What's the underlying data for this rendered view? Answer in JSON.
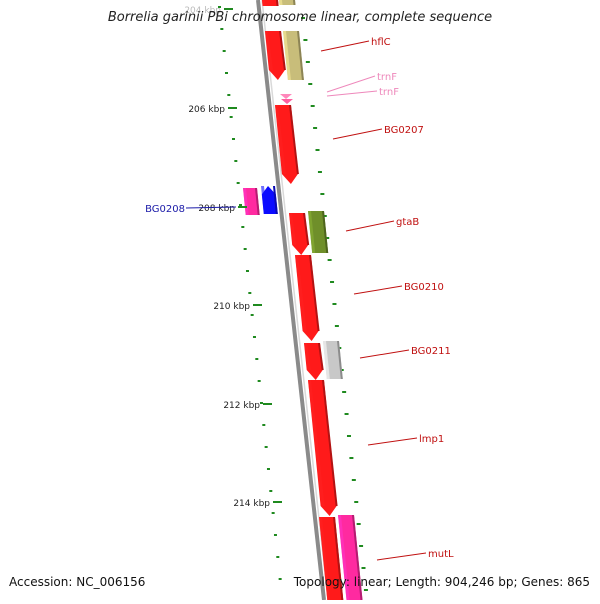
{
  "title": "Borrelia garinii PBi chromosome linear, complete sequence",
  "footer": {
    "accession": "Accession: NC_006156",
    "summary": "Topology: linear; Length: 904,246 bp; Genes: 865"
  },
  "kbp_ticks": [
    {
      "kbp": 204,
      "label": "204 kbp",
      "faded": true
    },
    {
      "kbp": 206,
      "label": "206 kbp"
    },
    {
      "kbp": 208,
      "label": "208 kbp"
    },
    {
      "kbp": 210,
      "label": "210 kbp"
    },
    {
      "kbp": 212,
      "label": "212 kbp"
    },
    {
      "kbp": 214,
      "label": "214 kbp"
    }
  ],
  "genes": [
    {
      "name": "hflC",
      "color": "#c01010"
    },
    {
      "name": "trnF",
      "color": "#ee88bb"
    },
    {
      "name": "trnF",
      "color": "#ee88bb"
    },
    {
      "name": "BG0207",
      "color": "#c01010"
    },
    {
      "name": "BG0208",
      "color": "#1a1aa8"
    },
    {
      "name": "gtaB",
      "color": "#c01010"
    },
    {
      "name": "BG0210",
      "color": "#c01010"
    },
    {
      "name": "BG0211",
      "color": "#c01010"
    },
    {
      "name": "lmp1",
      "color": "#c01010"
    },
    {
      "name": "mutL",
      "color": "#c01010"
    }
  ],
  "colors": {
    "backbone": "#8a8a8a",
    "cds": "#ff1a1a",
    "trna": "#ff88bb",
    "magenta": "#ff2aa0",
    "blue": "#0b0bff",
    "khaki": "#c8bd7a",
    "olive": "#6f8f2a",
    "grey": "#c8c8c8",
    "tick": "#1f8a1f"
  }
}
